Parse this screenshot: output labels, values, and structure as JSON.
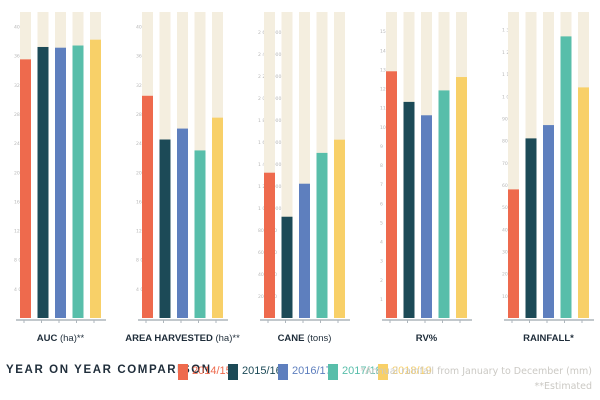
{
  "colors": {
    "track": "#f4eedf",
    "axis": "#aeb6bc",
    "tick_text": "#b8b8b8",
    "title_text": "#1f2d3a",
    "series": [
      "#ee6a4d",
      "#1c4a57",
      "#5e7fbe",
      "#58beaa",
      "#f8d068"
    ]
  },
  "legend": {
    "title": "YEAR ON YEAR COMPARISON",
    "items": [
      "2014/15",
      "2015/16",
      "2016/17",
      "2017/18",
      "2018/19"
    ]
  },
  "notes": {
    "rainfall": "*Annual rainfall from January to December (mm)",
    "estimated": "**Estimated"
  },
  "chart_data": [
    {
      "type": "bar",
      "title": "AUC",
      "unit": "(ha)**",
      "categories": [
        "2014/15",
        "2015/16",
        "2016/17",
        "2017/18",
        "2018/19"
      ],
      "values": [
        35500,
        37200,
        37100,
        37400,
        38200
      ],
      "ylim": [
        0,
        42000
      ],
      "yticks": [
        "4 000",
        "8 000",
        "12 000",
        "16 000",
        "20 000",
        "24 000",
        "28 000",
        "32 000",
        "36 000",
        "40 000"
      ],
      "ytick_values": [
        4000,
        8000,
        12000,
        16000,
        20000,
        24000,
        28000,
        32000,
        36000,
        40000
      ]
    },
    {
      "type": "bar",
      "title": "AREA HARVESTED",
      "unit": "(ha)**",
      "categories": [
        "2014/15",
        "2015/16",
        "2016/17",
        "2017/18",
        "2018/19"
      ],
      "values": [
        30500,
        24500,
        26000,
        23000,
        27500
      ],
      "ylim": [
        0,
        42000
      ],
      "yticks": [
        "4 000",
        "8 000",
        "12 000",
        "16 000",
        "20 000",
        "24 000",
        "28 000",
        "32 000",
        "36 000",
        "40 000"
      ],
      "ytick_values": [
        4000,
        8000,
        12000,
        16000,
        20000,
        24000,
        28000,
        32000,
        36000,
        40000
      ]
    },
    {
      "type": "bar",
      "title": "CANE",
      "unit": "(tons)",
      "categories": [
        "2014/15",
        "2015/16",
        "2016/17",
        "2017/18",
        "2018/19"
      ],
      "values": [
        1320000,
        920000,
        1220000,
        1500000,
        1620000
      ],
      "ylim": [
        0,
        2780000
      ],
      "yticks": [
        "200 000",
        "400 000",
        "600 000",
        "800 000",
        "1 000 000",
        "1 200 000",
        "1 400 000",
        "1 600 000",
        "1 800 000",
        "2 000 000",
        "2 200 000",
        "2 400 000",
        "2 600 000"
      ],
      "ytick_values": [
        200000,
        400000,
        600000,
        800000,
        1000000,
        1200000,
        1400000,
        1600000,
        1800000,
        2000000,
        2200000,
        2400000,
        2600000
      ]
    },
    {
      "type": "bar",
      "title": "RV%",
      "unit": "",
      "categories": [
        "2014/15",
        "2015/16",
        "2016/17",
        "2017/18",
        "2018/19"
      ],
      "values": [
        12.9,
        11.3,
        10.6,
        11.9,
        12.6
      ],
      "ylim": [
        0,
        16
      ],
      "yticks": [
        "1",
        "2",
        "3",
        "4",
        "5",
        "6",
        "7",
        "8",
        "9",
        "10",
        "11",
        "12",
        "13",
        "14",
        "15"
      ],
      "ytick_values": [
        1,
        2,
        3,
        4,
        5,
        6,
        7,
        8,
        9,
        10,
        11,
        12,
        13,
        14,
        15
      ]
    },
    {
      "type": "bar",
      "title": "RAINFALL*",
      "unit": "",
      "categories": [
        "2014/15",
        "2015/16",
        "2016/17",
        "2017/18",
        "2018/19"
      ],
      "values": [
        580,
        810,
        870,
        1270,
        1040
      ],
      "ylim": [
        0,
        1380
      ],
      "yticks": [
        "100",
        "200",
        "300",
        "400",
        "500",
        "600",
        "700",
        "800",
        "900",
        "1 000",
        "1 100",
        "1 200",
        "1 300"
      ],
      "ytick_values": [
        100,
        200,
        300,
        400,
        500,
        600,
        700,
        800,
        900,
        1000,
        1100,
        1200,
        1300
      ]
    }
  ]
}
